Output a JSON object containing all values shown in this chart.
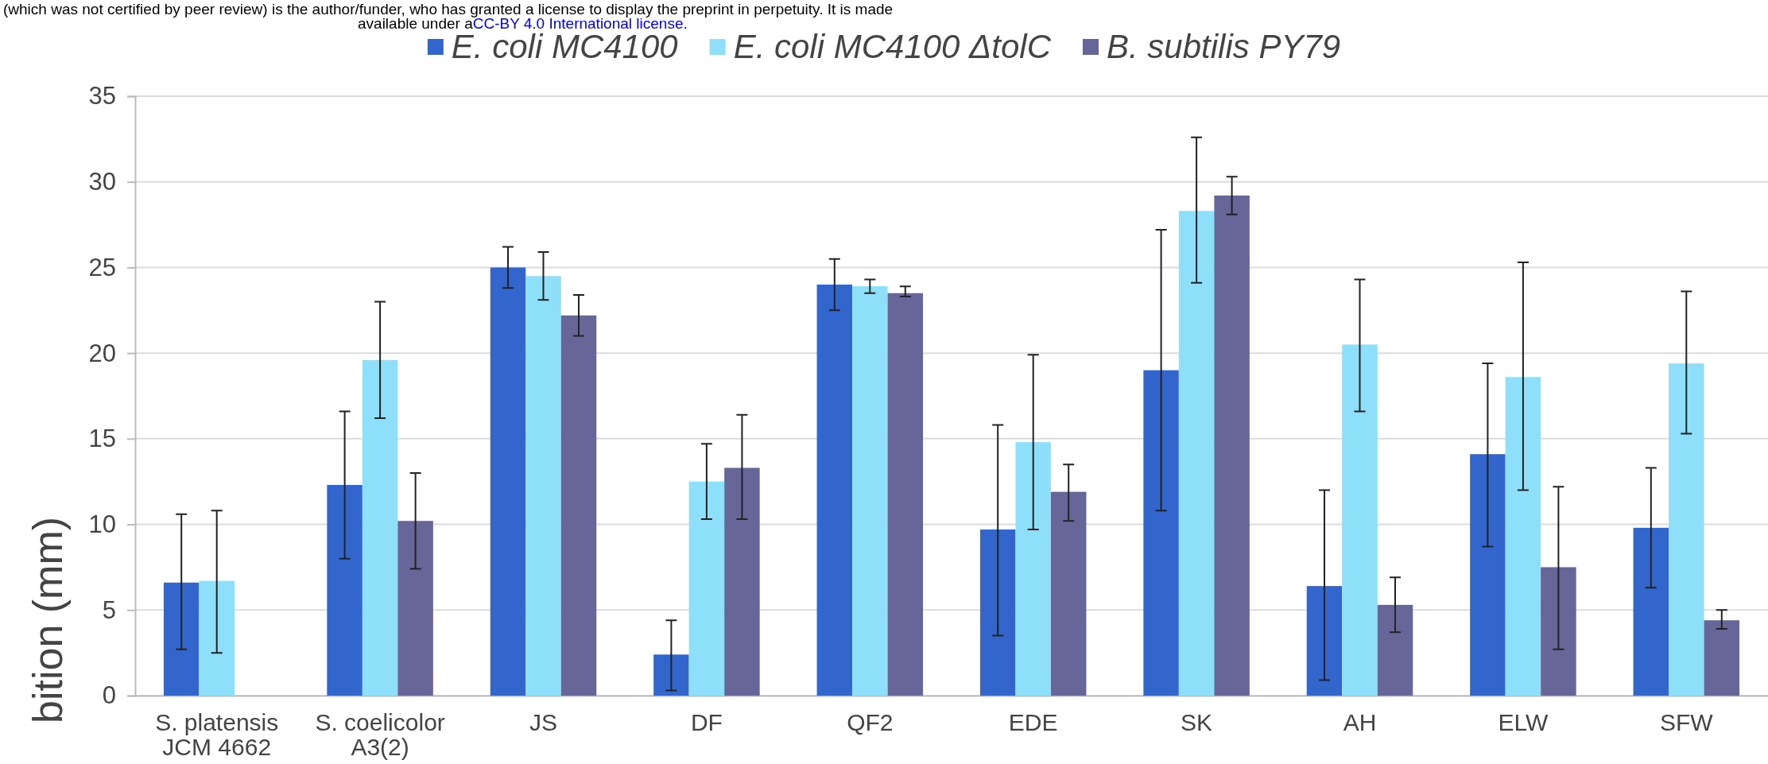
{
  "chart_data": {
    "type": "bar",
    "ylabel": "bition (mm)",
    "annotations": [
      "(which was not certified by peer review) is the author/funder, who has granted a license to display the preprint in perpetuity. It is made",
      "available under a",
      "CC-BY 4.0 International license."
    ],
    "categories": [
      "S. platensis\nJCM 4662",
      "S. coelicolor\nA3(2)",
      "JS",
      "DF",
      "QF2",
      "EDE",
      "SK",
      "AH",
      "ELW",
      "SFW"
    ],
    "series": [
      {
        "name": "E. coli MC4100",
        "color": "#3366cc",
        "values": [
          6.6,
          12.3,
          25.0,
          2.4,
          24.0,
          9.7,
          19.0,
          6.4,
          14.1,
          9.8
        ],
        "errors": [
          [
            2.7,
            10.6
          ],
          [
            8.0,
            16.6
          ],
          [
            23.8,
            26.2
          ],
          [
            0.3,
            4.4
          ],
          [
            22.5,
            25.5
          ],
          [
            3.5,
            15.8
          ],
          [
            10.8,
            27.2
          ],
          [
            0.9,
            12.0
          ],
          [
            8.7,
            19.4
          ],
          [
            6.3,
            13.3
          ]
        ]
      },
      {
        "name": "E. coli MC4100 ΔtolC",
        "color": "#8ee0fa",
        "values": [
          6.7,
          19.6,
          24.5,
          12.5,
          23.9,
          14.8,
          28.3,
          20.5,
          18.6,
          19.4
        ],
        "errors": [
          [
            2.5,
            10.8
          ],
          [
            16.2,
            23.0
          ],
          [
            23.1,
            25.9
          ],
          [
            10.3,
            14.7
          ],
          [
            23.5,
            24.3
          ],
          [
            9.7,
            19.9
          ],
          [
            24.1,
            32.6
          ],
          [
            16.6,
            24.3
          ],
          [
            12.0,
            25.3
          ],
          [
            15.3,
            23.6
          ]
        ]
      },
      {
        "name": "B. subtilis PY79",
        "color": "#676698",
        "values": [
          null,
          10.2,
          22.2,
          13.3,
          23.5,
          11.9,
          29.2,
          5.3,
          7.5,
          4.4
        ],
        "errors": [
          null,
          [
            7.4,
            13.0
          ],
          [
            21.0,
            23.4
          ],
          [
            10.3,
            16.4
          ],
          [
            23.3,
            23.9
          ],
          [
            10.2,
            13.5
          ],
          [
            28.1,
            30.3
          ],
          [
            3.7,
            6.9
          ],
          [
            2.7,
            12.2
          ],
          [
            3.9,
            5.0
          ]
        ]
      }
    ],
    "ylim": [
      0,
      35
    ],
    "yticks": [
      0,
      5,
      10,
      15,
      20,
      25,
      30,
      35
    ],
    "grid": "y",
    "legend": "top"
  }
}
